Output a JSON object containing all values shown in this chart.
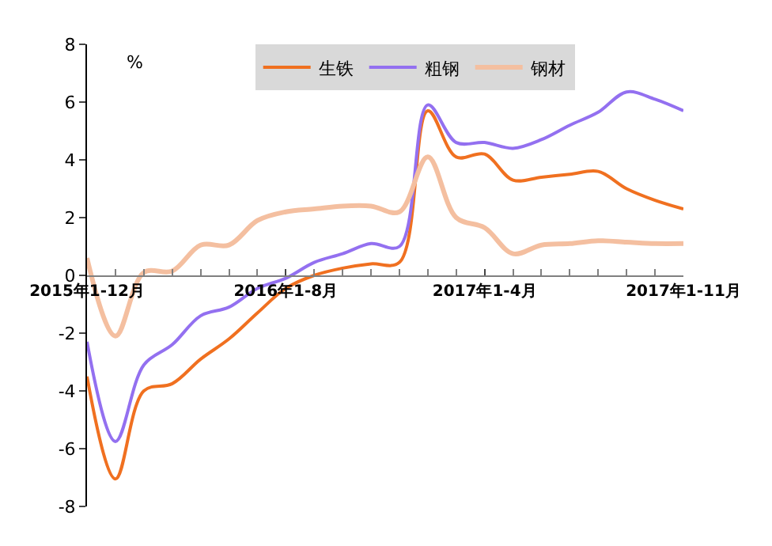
{
  "chart_data": {
    "type": "line",
    "ylabel": "%",
    "categories": [
      "2015年1-12月",
      null,
      null,
      null,
      null,
      null,
      null,
      "2016年1-8月",
      null,
      null,
      null,
      null,
      null,
      null,
      "2017年1-4月",
      null,
      null,
      null,
      null,
      null,
      null,
      "2017年1-11月"
    ],
    "series": [
      {
        "name": "生铁",
        "color": "#f07020",
        "values": [
          -3.5,
          -7.05,
          -4.0,
          -3.75,
          -2.9,
          -2.2,
          -1.3,
          -0.45,
          0.0,
          0.25,
          0.4,
          0.45,
          5.7,
          4.1,
          4.2,
          3.3,
          3.4,
          3.5,
          3.6,
          3.0,
          2.6,
          2.3
        ]
      },
      {
        "name": "粗钢",
        "color": "#9370f0",
        "values": [
          -2.3,
          -5.75,
          -3.1,
          -2.4,
          -1.4,
          -1.1,
          -0.45,
          -0.1,
          0.45,
          0.75,
          1.1,
          1.0,
          5.9,
          4.6,
          4.6,
          4.4,
          4.7,
          5.2,
          5.65,
          6.35,
          6.1,
          5.7
        ]
      },
      {
        "name": "钢材",
        "color": "#f4bfa0",
        "values": [
          0.6,
          -2.1,
          0.1,
          0.15,
          1.05,
          1.05,
          1.9,
          2.2,
          2.3,
          2.4,
          2.4,
          2.2,
          4.1,
          2.0,
          1.65,
          0.75,
          1.05,
          1.1,
          1.2,
          1.15,
          1.1,
          1.1
        ]
      }
    ],
    "ylim": [
      -8,
      8
    ],
    "yticks": [
      -8,
      -6,
      -4,
      -2,
      0,
      2,
      4,
      6,
      8
    ],
    "legend": "top",
    "marker": "none",
    "line_style": "solid"
  }
}
